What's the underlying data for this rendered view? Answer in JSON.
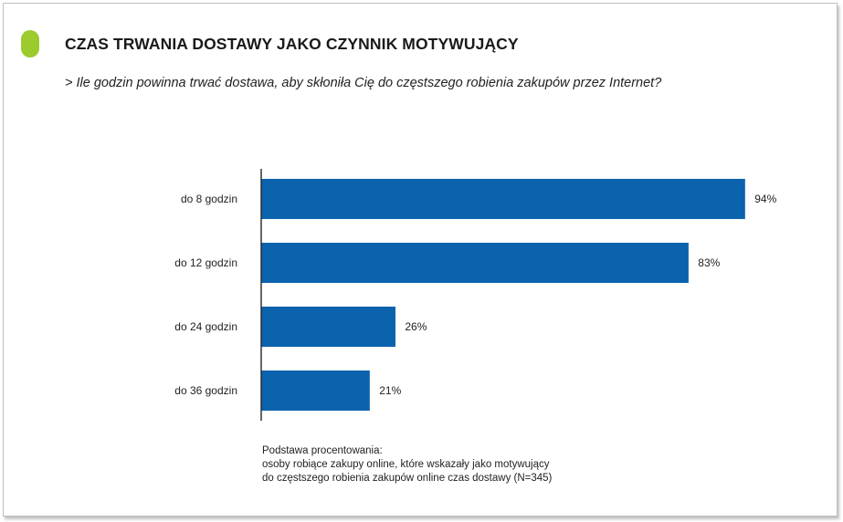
{
  "header": {
    "title": "CZAS TRWANIA DOSTAWY JAKO CZYNNIK MOTYWUJĄCY",
    "subtitle": "> Ile godzin powinna trwać dostawa, aby skłoniła Cię do częstszego robienia zakupów przez Internet?"
  },
  "colors": {
    "bar": "#0b62ad",
    "accent": "#9ccb2e",
    "axis": "#000000"
  },
  "chart_data": {
    "type": "bar",
    "orientation": "horizontal",
    "categories": [
      "do  8 godzin",
      "do 12 godzin",
      "do 24 godzin",
      "do 36 godzin"
    ],
    "values": [
      94,
      83,
      26,
      21
    ],
    "value_labels": [
      "94%",
      "83%",
      "26%",
      "21%"
    ],
    "xlim": [
      0,
      100
    ],
    "grid": false,
    "legend": "none"
  },
  "note": {
    "lines": [
      "Podstawa procentowania:",
      "osoby robiące zakupy online, które wskazały jako motywujący",
      "do częstszego robienia zakupów online czas dostawy (N=345)"
    ]
  }
}
